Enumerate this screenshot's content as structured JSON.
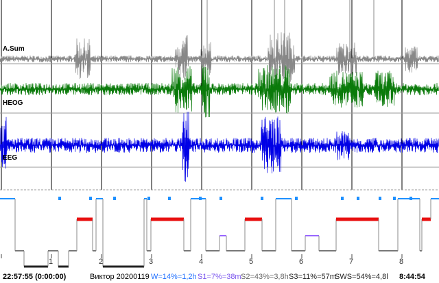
{
  "channels": [
    {
      "name": "A.Sum",
      "color": "#888888"
    },
    {
      "name": "HEOG",
      "color": "#0a7a0a"
    },
    {
      "name": "EEG",
      "color": "#0000e6"
    }
  ],
  "hypnogram": {
    "stage_colors": {
      "W": "#1e90ff",
      "REM": "#e81010",
      "S1": "#9966ff",
      "S2": "#777777",
      "S3": "#222222"
    }
  },
  "hour_ticks": [
    "1",
    "2",
    "3",
    "4",
    "5",
    "6",
    "7",
    "8"
  ],
  "status": {
    "start_time": "22:57:55 (0:00:00)",
    "recording": "Виктор 20200119",
    "w": "W=14%=1,2h",
    "s1": "S1=7%=38m",
    "s2": "S2=43%=3,8h",
    "s3": "S3=11%=57m",
    "sws": "SWS=54%=4,8l",
    "end_time": "8:44:54"
  },
  "colors": {
    "w_text": "#1e6fff",
    "s1_text": "#7a55ee",
    "s2_text": "#666666",
    "sws_text": "#222222"
  }
}
